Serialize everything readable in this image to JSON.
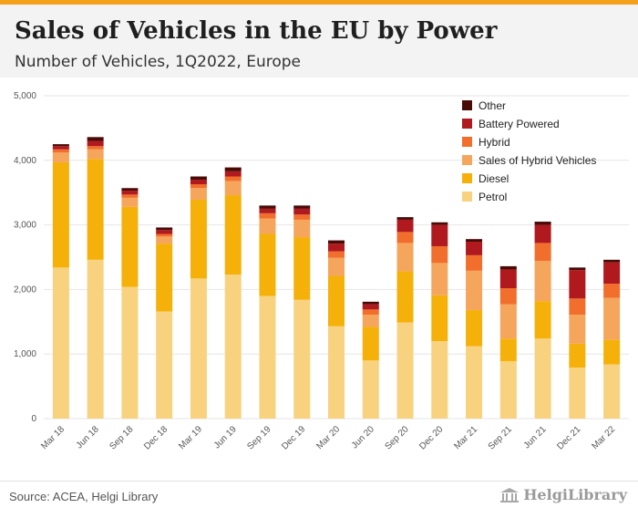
{
  "header": {
    "title": "Sales of Vehicles in the EU by Power",
    "subtitle": "Number of Vehicles, 1Q2022, Europe"
  },
  "footer": {
    "source": "Source: ACEA, Helgi Library",
    "logo_text": "HelgiLibrary"
  },
  "colors": {
    "accent_bar": "#f5a01a",
    "header_bg": "#f3f3f3"
  },
  "chart_data": {
    "type": "bar",
    "stacked": true,
    "title": "",
    "xlabel": "",
    "ylabel": "",
    "ylim": [
      0,
      5000
    ],
    "yticks": [
      0,
      1000,
      2000,
      3000,
      4000,
      5000
    ],
    "ytick_labels": [
      "0",
      "1,000",
      "2,000",
      "3,000",
      "4,000",
      "5,000"
    ],
    "grid": true,
    "legend_position": "top-right",
    "categories": [
      "Mar 18",
      "Jun 18",
      "Sep 18",
      "Dec 18",
      "Mar 19",
      "Jun 19",
      "Sep 19",
      "Dec 19",
      "Mar 20",
      "Jun 20",
      "Sep 20",
      "Dec 20",
      "Mar 21",
      "Sep 21",
      "Jun 21",
      "Dec 21",
      "Mar 22"
    ],
    "series": [
      {
        "name": "Petrol",
        "color": "#f8d27f",
        "values": [
          2340,
          2460,
          2040,
          1660,
          2170,
          2230,
          1900,
          1840,
          1430,
          900,
          1490,
          1200,
          1120,
          890,
          1240,
          790,
          840
        ]
      },
      {
        "name": "Diesel",
        "color": "#f5b10a",
        "values": [
          1630,
          1560,
          1240,
          1050,
          1220,
          1230,
          960,
          970,
          780,
          520,
          790,
          710,
          560,
          350,
          580,
          370,
          380
        ]
      },
      {
        "name": "Sales of Hybrid Vehicles",
        "color": "#f5a55c",
        "values": [
          150,
          150,
          140,
          110,
          180,
          220,
          240,
          270,
          280,
          190,
          440,
          500,
          610,
          530,
          620,
          450,
          650
        ]
      },
      {
        "name": "Hybrid",
        "color": "#f26e2c",
        "values": [
          50,
          50,
          50,
          40,
          60,
          70,
          80,
          80,
          100,
          80,
          170,
          260,
          240,
          250,
          280,
          250,
          220
        ]
      },
      {
        "name": "Battery Powered",
        "color": "#b0191e",
        "values": [
          50,
          80,
          60,
          60,
          70,
          80,
          70,
          90,
          120,
          80,
          190,
          330,
          210,
          290,
          280,
          440,
          330
        ]
      },
      {
        "name": "Other",
        "color": "#4a0a06",
        "values": [
          30,
          60,
          40,
          40,
          50,
          60,
          50,
          50,
          50,
          40,
          40,
          40,
          40,
          50,
          50,
          40,
          40
        ]
      }
    ],
    "legend_order": [
      "Other",
      "Battery Powered",
      "Hybrid",
      "Sales of Hybrid Vehicles",
      "Diesel",
      "Petrol"
    ]
  }
}
